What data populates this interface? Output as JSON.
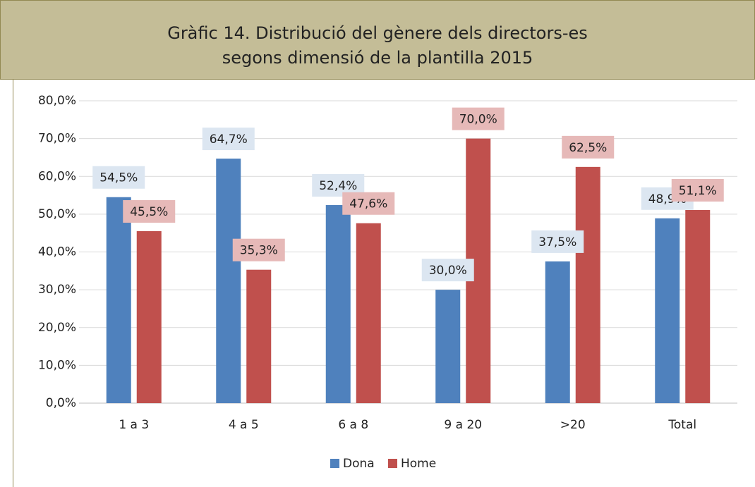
{
  "chart_data": {
    "type": "bar",
    "title_lines": [
      "Gràfic 14. Distribució del gènere dels directors-es",
      "segons dimensió de la plantilla 2015"
    ],
    "categories": [
      "1 a 3",
      "4 a 5",
      "6 a 8",
      "9 a 20",
      ">20",
      "Total"
    ],
    "series": [
      {
        "name": "Dona",
        "color": "#4f81bd",
        "label_bg": "#dce6f1",
        "values": [
          54.5,
          64.7,
          52.4,
          30.0,
          37.5,
          48.9
        ],
        "value_labels": [
          "54,5%",
          "64,7%",
          "52,4%",
          "30,0%",
          "37,5%",
          "48,9%"
        ]
      },
      {
        "name": "Home",
        "color": "#c0504d",
        "label_bg": "#e6b9b8",
        "values": [
          45.5,
          35.3,
          47.6,
          70.0,
          62.5,
          51.1
        ],
        "value_labels": [
          "45,5%",
          "35,3%",
          "47,6%",
          "70,0%",
          "62,5%",
          "51,1%"
        ]
      }
    ],
    "ylim": [
      0,
      80
    ],
    "yticks": [
      {
        "value": 0,
        "label": "0,0%"
      },
      {
        "value": 10,
        "label": "10,0%"
      },
      {
        "value": 20,
        "label": "20,0%"
      },
      {
        "value": 30,
        "label": "30,0%"
      },
      {
        "value": 40,
        "label": "40,0%"
      },
      {
        "value": 50,
        "label": "50,0%"
      },
      {
        "value": 60,
        "label": "60,0%"
      },
      {
        "value": 70,
        "label": "70,0%"
      },
      {
        "value": 80,
        "label": "80,0%"
      }
    ],
    "grid": true,
    "legend": "bottom"
  }
}
